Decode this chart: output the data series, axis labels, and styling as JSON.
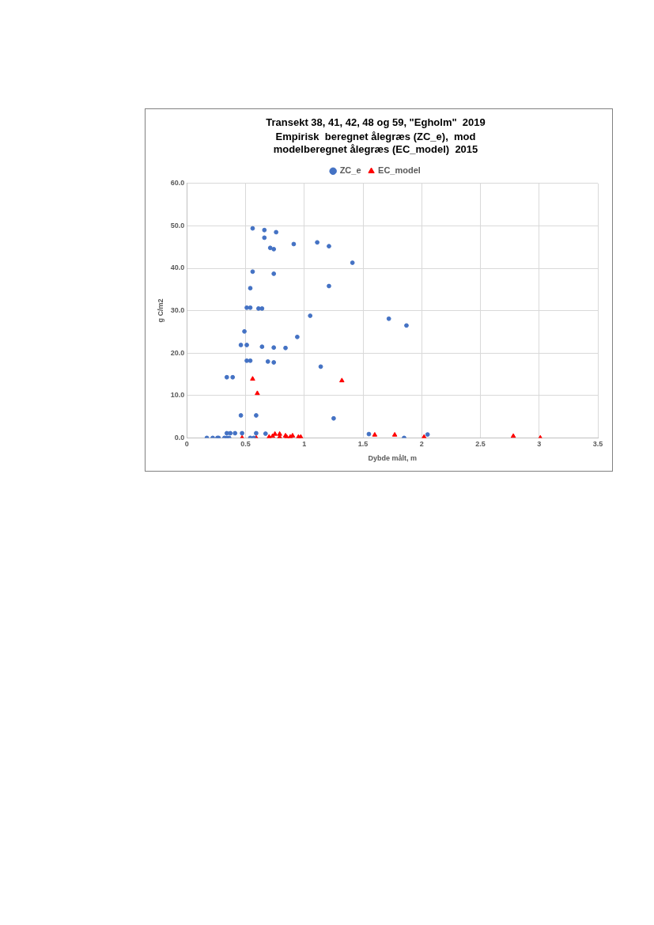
{
  "chart_data": {
    "type": "scatter",
    "title": "Transekt 38, 41, 42, 48 og 59, \"Egholm\"  2019",
    "subtitle": "Empirisk  beregnet ålegræs (ZC_e),  mod\nmodelberegnet ålegræs (EC_model)  2015",
    "xlabel": "Dybde målt, m",
    "ylabel": "g C/m2",
    "xlim": [
      0,
      3.5
    ],
    "xticks": [
      0,
      0.5,
      1,
      1.5,
      2,
      2.5,
      3,
      3.5
    ],
    "ylim": [
      0,
      60
    ],
    "yticks": [
      {
        "value": 0,
        "label": "0.0"
      },
      {
        "value": 10,
        "label": "10.0"
      },
      {
        "value": 20,
        "label": "20.0"
      },
      {
        "value": 30,
        "label": "30.0"
      },
      {
        "value": 40,
        "label": "40.0"
      },
      {
        "value": 50,
        "label": "50.0"
      },
      {
        "value": 60,
        "label": "60.0"
      }
    ],
    "grid": true,
    "legend": "top",
    "series": [
      {
        "name": "ZC_e",
        "color": "#4472c4",
        "marker": "circle",
        "x": [
          0.56,
          0.66,
          0.76,
          0.66,
          0.71,
          0.74,
          0.91,
          1.11,
          1.21,
          1.41,
          0.56,
          0.74,
          0.54,
          1.21,
          0.51,
          0.54,
          0.61,
          0.64,
          1.05,
          0.49,
          0.94,
          0.46,
          0.51,
          0.64,
          0.74,
          0.84,
          1.72,
          1.87,
          0.51,
          0.54,
          0.69,
          0.74,
          1.14,
          0.34,
          0.39,
          0.46,
          0.59,
          1.25,
          0.34,
          0.37,
          0.41,
          0.47,
          0.59,
          0.67,
          0.17,
          0.22,
          0.26,
          0.27,
          0.32,
          0.34,
          0.36,
          0.54,
          0.57,
          1.55,
          1.85,
          2.05
        ],
        "values": [
          49.4,
          49.0,
          48.5,
          47.2,
          44.8,
          44.5,
          45.7,
          46.1,
          45.2,
          41.3,
          39.2,
          38.7,
          35.3,
          35.8,
          30.7,
          30.7,
          30.5,
          30.5,
          28.8,
          25.1,
          23.8,
          21.9,
          21.9,
          21.5,
          21.3,
          21.2,
          28.1,
          26.5,
          18.2,
          18.2,
          18.0,
          17.8,
          16.8,
          14.3,
          14.3,
          5.3,
          5.3,
          4.6,
          1.1,
          1.1,
          1.1,
          1.1,
          1.1,
          1.0,
          0,
          0,
          0,
          0,
          0,
          0,
          0,
          0,
          0,
          0.9,
          0,
          0.8
        ]
      },
      {
        "name": "EC_model",
        "color": "#ff0000",
        "marker": "triangle",
        "x": [
          0.56,
          0.6,
          1.32,
          0.47,
          0.59,
          0.7,
          0.73,
          0.75,
          0.79,
          0.79,
          0.84,
          0.85,
          0.88,
          0.9,
          0.95,
          0.97,
          1.6,
          1.77,
          2.02,
          2.78,
          3.01
        ],
        "values": [
          13.9,
          10.5,
          13.5,
          0,
          0,
          0.2,
          0.4,
          0.9,
          0.9,
          0.2,
          0.5,
          0.2,
          0.2,
          0.5,
          0.2,
          0.2,
          0.7,
          0.7,
          0.2,
          0.4,
          0
        ]
      }
    ]
  }
}
